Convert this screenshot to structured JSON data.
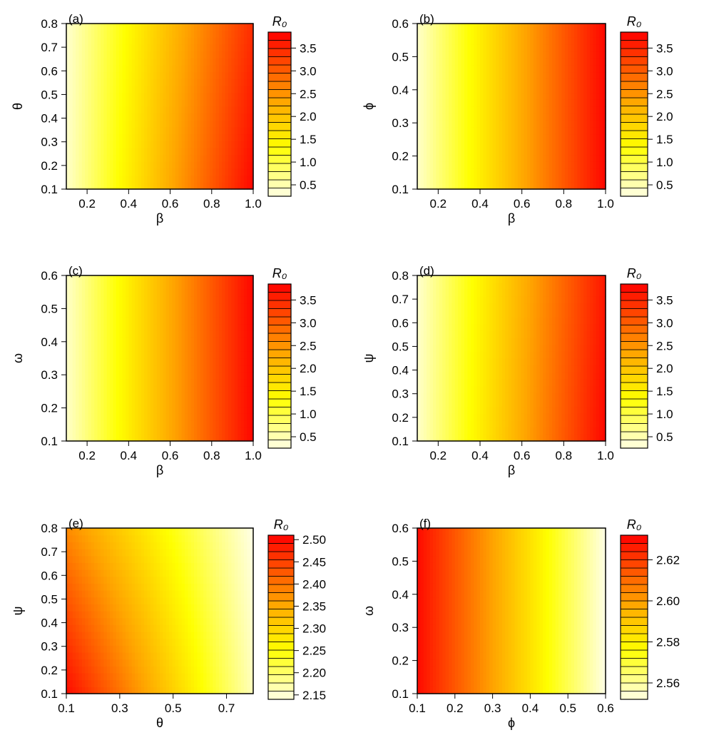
{
  "chart_data": [
    {
      "type": "heatmap",
      "panel_label": "(a)",
      "xlabel": "β",
      "ylabel": "θ",
      "xlim": [
        0.1,
        1.0
      ],
      "ylim": [
        0.1,
        0.8
      ],
      "xticks": [
        0.2,
        0.4,
        0.6,
        0.8,
        1.0
      ],
      "xtick_labels": [
        "0.2",
        "0.4",
        "0.6",
        "0.8",
        "1.0"
      ],
      "yticks": [
        0.1,
        0.2,
        0.3,
        0.4,
        0.5,
        0.6,
        0.7,
        0.8
      ],
      "ytick_labels": [
        "0.1",
        "0.2",
        "0.3",
        "0.4",
        "0.5",
        "0.6",
        "0.7",
        "0.8"
      ],
      "legend_title": "R₀",
      "legend_range": [
        0.25,
        3.85
      ],
      "legend_ticks": [
        0.5,
        1.0,
        1.5,
        2.0,
        2.5,
        3.0,
        3.5
      ],
      "legend_tick_labels": [
        "0.5",
        "1.0",
        "1.5",
        "2.0",
        "2.5",
        "3.0",
        "3.5"
      ],
      "z_corners": {
        "x_min_y_min": 0.38,
        "x_max_y_min": 3.8,
        "x_min_y_max": 0.35,
        "x_max_y_max": 3.45
      }
    },
    {
      "type": "heatmap",
      "panel_label": "(b)",
      "xlabel": "β",
      "ylabel": "ϕ",
      "xlim": [
        0.1,
        1.0
      ],
      "ylim": [
        0.1,
        0.6
      ],
      "xticks": [
        0.2,
        0.4,
        0.6,
        0.8,
        1.0
      ],
      "xtick_labels": [
        "0.2",
        "0.4",
        "0.6",
        "0.8",
        "1.0"
      ],
      "yticks": [
        0.1,
        0.2,
        0.3,
        0.4,
        0.5,
        0.6
      ],
      "ytick_labels": [
        "0.1",
        "0.2",
        "0.3",
        "0.4",
        "0.5",
        "0.6"
      ],
      "legend_title": "R₀",
      "legend_range": [
        0.25,
        3.85
      ],
      "legend_ticks": [
        0.5,
        1.0,
        1.5,
        2.0,
        2.5,
        3.0,
        3.5
      ],
      "legend_tick_labels": [
        "0.5",
        "1.0",
        "1.5",
        "2.0",
        "2.5",
        "3.0",
        "3.5"
      ],
      "z_corners": {
        "x_min_y_min": 0.38,
        "x_max_y_min": 3.8,
        "x_min_y_max": 0.38,
        "x_max_y_max": 3.8
      }
    },
    {
      "type": "heatmap",
      "panel_label": "(c)",
      "xlabel": "β",
      "ylabel": "ω",
      "xlim": [
        0.1,
        1.0
      ],
      "ylim": [
        0.1,
        0.6
      ],
      "xticks": [
        0.2,
        0.4,
        0.6,
        0.8,
        1.0
      ],
      "xtick_labels": [
        "0.2",
        "0.4",
        "0.6",
        "0.8",
        "1.0"
      ],
      "yticks": [
        0.1,
        0.2,
        0.3,
        0.4,
        0.5,
        0.6
      ],
      "ytick_labels": [
        "0.1",
        "0.2",
        "0.3",
        "0.4",
        "0.5",
        "0.6"
      ],
      "legend_title": "R₀",
      "legend_range": [
        0.25,
        3.85
      ],
      "legend_ticks": [
        0.5,
        1.0,
        1.5,
        2.0,
        2.5,
        3.0,
        3.5
      ],
      "legend_tick_labels": [
        "0.5",
        "1.0",
        "1.5",
        "2.0",
        "2.5",
        "3.0",
        "3.5"
      ],
      "z_corners": {
        "x_min_y_min": 0.38,
        "x_max_y_min": 3.8,
        "x_min_y_max": 0.38,
        "x_max_y_max": 3.8
      }
    },
    {
      "type": "heatmap",
      "panel_label": "(d)",
      "xlabel": "β",
      "ylabel": "ψ",
      "xlim": [
        0.1,
        1.0
      ],
      "ylim": [
        0.1,
        0.8
      ],
      "xticks": [
        0.2,
        0.4,
        0.6,
        0.8,
        1.0
      ],
      "xtick_labels": [
        "0.2",
        "0.4",
        "0.6",
        "0.8",
        "1.0"
      ],
      "yticks": [
        0.1,
        0.2,
        0.3,
        0.4,
        0.5,
        0.6,
        0.7,
        0.8
      ],
      "ytick_labels": [
        "0.1",
        "0.2",
        "0.3",
        "0.4",
        "0.5",
        "0.6",
        "0.7",
        "0.8"
      ],
      "legend_title": "R₀",
      "legend_range": [
        0.25,
        3.85
      ],
      "legend_ticks": [
        0.5,
        1.0,
        1.5,
        2.0,
        2.5,
        3.0,
        3.5
      ],
      "legend_tick_labels": [
        "0.5",
        "1.0",
        "1.5",
        "2.0",
        "2.5",
        "3.0",
        "3.5"
      ],
      "z_corners": {
        "x_min_y_min": 0.38,
        "x_max_y_min": 3.8,
        "x_min_y_max": 0.36,
        "x_max_y_max": 3.65
      }
    },
    {
      "type": "heatmap",
      "panel_label": "(e)",
      "xlabel": "θ",
      "ylabel": "ψ",
      "xlim": [
        0.1,
        0.8
      ],
      "ylim": [
        0.1,
        0.8
      ],
      "xticks": [
        0.1,
        0.3,
        0.5,
        0.7
      ],
      "xtick_labels": [
        "0.1",
        "0.3",
        "0.5",
        "0.7"
      ],
      "yticks": [
        0.1,
        0.2,
        0.3,
        0.4,
        0.5,
        0.6,
        0.7,
        0.8
      ],
      "ytick_labels": [
        "0.1",
        "0.2",
        "0.3",
        "0.4",
        "0.5",
        "0.6",
        "0.7",
        "0.8"
      ],
      "legend_title": "R₀",
      "legend_range": [
        2.14,
        2.51
      ],
      "legend_ticks": [
        2.15,
        2.2,
        2.25,
        2.3,
        2.35,
        2.4,
        2.45,
        2.5
      ],
      "legend_tick_labels": [
        "2.15",
        "2.20",
        "2.25",
        "2.30",
        "2.35",
        "2.40",
        "2.45",
        "2.50"
      ],
      "z_corners": {
        "x_min_y_min": 2.5,
        "x_max_y_min": 2.16,
        "x_min_y_max": 2.38,
        "x_max_y_max": 2.14
      }
    },
    {
      "type": "heatmap",
      "panel_label": "(f)",
      "xlabel": "ϕ",
      "ylabel": "ω",
      "xlim": [
        0.1,
        0.6
      ],
      "ylim": [
        0.1,
        0.6
      ],
      "xticks": [
        0.1,
        0.2,
        0.3,
        0.4,
        0.5,
        0.6
      ],
      "xtick_labels": [
        "0.1",
        "0.2",
        "0.3",
        "0.4",
        "0.5",
        "0.6"
      ],
      "yticks": [
        0.1,
        0.2,
        0.3,
        0.4,
        0.5,
        0.6
      ],
      "ytick_labels": [
        "0.1",
        "0.2",
        "0.3",
        "0.4",
        "0.5",
        "0.6"
      ],
      "legend_title": "R₀",
      "legend_range": [
        2.552,
        2.632
      ],
      "legend_ticks": [
        2.56,
        2.58,
        2.6,
        2.62
      ],
      "legend_tick_labels": [
        "2.56",
        "2.58",
        "2.60",
        "2.62"
      ],
      "z_corners": {
        "x_min_y_min": 2.63,
        "x_max_y_min": 2.552,
        "x_min_y_max": 2.63,
        "x_max_y_max": 2.552
      }
    }
  ],
  "colors": {
    "low": "#ffffe6",
    "yellow": "#ffff00",
    "orange": "#ffa500",
    "high": "#ff0000"
  }
}
